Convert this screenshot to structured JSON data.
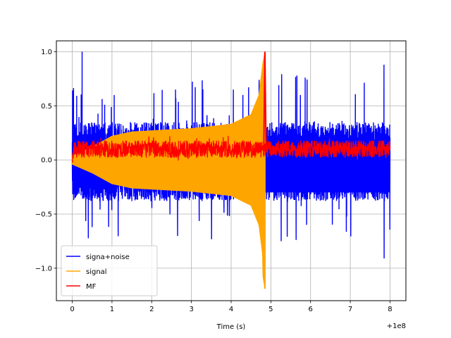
{
  "chart_data": {
    "type": "line",
    "title": "",
    "xlabel": "Time (s)",
    "ylabel": "",
    "x_offset_label": "+1e8",
    "xlim": [
      -0.4,
      8.4
    ],
    "ylim": [
      -1.3,
      1.1
    ],
    "x_ticks": [
      0,
      1,
      2,
      3,
      4,
      5,
      6,
      7,
      8
    ],
    "x_tick_labels": [
      "0",
      "1",
      "2",
      "3",
      "4",
      "5",
      "6",
      "7",
      "8"
    ],
    "y_ticks": [
      -1.0,
      -0.5,
      0.0,
      0.5,
      1.0
    ],
    "y_tick_labels": [
      "−1.0",
      "−0.5",
      "0.0",
      "0.5",
      "1.0"
    ],
    "grid": true,
    "legend_position": "lower-left",
    "series": [
      {
        "name": "signa+noise",
        "color": "#0000ff",
        "kind": "noisy-envelope",
        "x_range": [
          0,
          8
        ],
        "upper_typical": 0.35,
        "upper_peaks": [
          [
            0.25,
            1.0
          ],
          [
            2.6,
            0.65
          ],
          [
            7.85,
            0.88
          ],
          [
            3.3,
            0.6
          ],
          [
            4.3,
            0.6
          ]
        ],
        "lower_typical": -0.38,
        "lower_peaks": [
          [
            7.85,
            -0.91
          ],
          [
            0.5,
            -0.62
          ],
          [
            3.0,
            -0.62
          ],
          [
            5.9,
            -0.6
          ]
        ],
        "inner_band": [
          [
            0,
            -0.04
          ],
          [
            1.0,
            -0.22
          ],
          [
            2.0,
            -0.27
          ],
          [
            3.0,
            -0.28
          ],
          [
            4.0,
            -0.32
          ],
          [
            4.8,
            -0.42
          ],
          [
            4.85,
            0.0
          ],
          [
            8,
            0.0
          ]
        ]
      },
      {
        "name": "signal",
        "color": "#ffa500",
        "kind": "chirp",
        "x_range": [
          0,
          4.85
        ],
        "envelope": [
          [
            0,
            0.04
          ],
          [
            0.5,
            0.12
          ],
          [
            1.0,
            0.22
          ],
          [
            1.5,
            0.26
          ],
          [
            2.0,
            0.27
          ],
          [
            3.0,
            0.29
          ],
          [
            4.0,
            0.33
          ],
          [
            4.5,
            0.42
          ],
          [
            4.7,
            0.6
          ],
          [
            4.8,
            0.9
          ],
          [
            4.85,
            1.0
          ]
        ],
        "min_value": -1.19
      },
      {
        "name": "MF",
        "color": "#ff0000",
        "kind": "noise-band",
        "x_range": [
          0,
          8
        ],
        "center": 0.1,
        "spread": 0.08,
        "spike": [
          [
            4.82,
            0.05
          ],
          [
            4.85,
            1.0
          ],
          [
            4.88,
            0.1
          ]
        ]
      }
    ]
  }
}
